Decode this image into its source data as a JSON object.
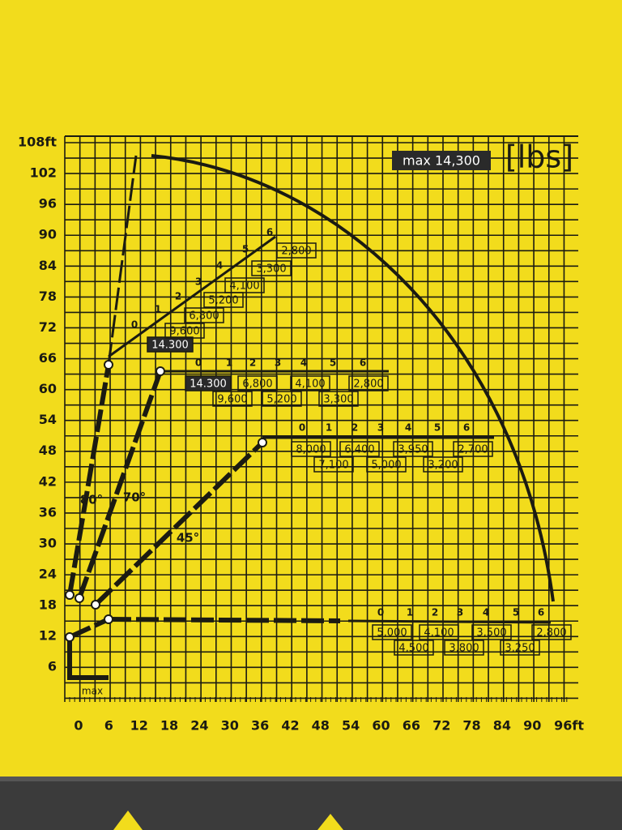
{
  "axis": {
    "y_labels": [
      "108ft",
      "102",
      "96",
      "90",
      "84",
      "78",
      "72",
      "66",
      "60",
      "54",
      "48",
      "42",
      "36",
      "30",
      "24",
      "18",
      "12",
      "6"
    ],
    "x_labels": [
      "0",
      "6",
      "12",
      "18",
      "24",
      "30",
      "36",
      "42",
      "48",
      "54",
      "60",
      "66",
      "72",
      "78",
      "84",
      "90",
      "96ft"
    ]
  },
  "badge": {
    "max": "max 14,300",
    "unit": "[lbs]"
  },
  "footer_label": "max",
  "load_tables": [
    {
      "positions": [
        "0",
        "1",
        "2",
        "3",
        "4",
        "5",
        "6"
      ],
      "loads": [
        "14.300",
        "9,600",
        "6,800",
        "5,200",
        "4,100",
        "3,300",
        "2,800"
      ]
    },
    {
      "angle": "70°",
      "positions": [
        "0",
        "1",
        "2",
        "3",
        "4",
        "5",
        "6"
      ],
      "loads": [
        "14.300",
        "9,600",
        "6,800",
        "5,200",
        "4,100",
        "3,300",
        "2,800"
      ]
    },
    {
      "angle": "45°",
      "positions": [
        "0",
        "1",
        "2",
        "3",
        "4",
        "5",
        "6"
      ],
      "loads": [
        "8,000",
        "7,100",
        "6,400",
        "5,000",
        "3,950",
        "3,200",
        "2,700"
      ]
    },
    {
      "positions": [
        "0",
        "1",
        "2",
        "3",
        "4",
        "5",
        "6"
      ],
      "loads": [
        "5,000",
        "4,500",
        "4,100",
        "3,800",
        "3,500",
        "3,250",
        "2,800"
      ]
    }
  ],
  "angle_80": "80°"
}
